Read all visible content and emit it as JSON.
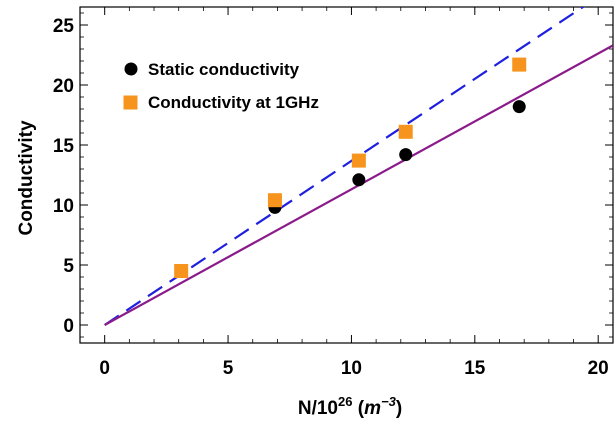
{
  "chart_data": {
    "type": "scatter",
    "xlabel": "N/10",
    "xlabel_exponent": "26",
    "xlabel_unit_open": " (",
    "xlabel_unit_base": "m",
    "xlabel_unit_exponent": "−3",
    "xlabel_unit_close": ")",
    "ylabel": "Conductivity",
    "xlim": [
      -1.0,
      20.6
    ],
    "ylim": [
      -1.5,
      26.5
    ],
    "xticks": [
      "0",
      "5",
      "10",
      "15",
      "20"
    ],
    "yticks": [
      "0",
      "5",
      "10",
      "15",
      "20",
      "25"
    ],
    "grid": false,
    "legend_position": "top-left",
    "series": [
      {
        "name": "Static conductivity",
        "kind": "points",
        "marker": "circle",
        "color": "#000000",
        "x": [
          6.9,
          10.3,
          12.2,
          16.8
        ],
        "y": [
          9.8,
          12.1,
          14.2,
          18.2
        ]
      },
      {
        "name": "Conductivity at 1GHz",
        "kind": "points",
        "marker": "square",
        "color": "#f7941d",
        "x": [
          3.1,
          6.9,
          10.3,
          12.2,
          16.8
        ],
        "y": [
          4.5,
          10.4,
          13.7,
          16.1,
          21.7
        ]
      },
      {
        "kind": "line",
        "style": "dashed",
        "color": "#1f1fe0",
        "x": [
          0,
          19.6
        ],
        "y": [
          0,
          26.8
        ]
      },
      {
        "kind": "line",
        "style": "solid",
        "color": "#8b1a8b",
        "x": [
          0,
          20.6
        ],
        "y": [
          0,
          23.3
        ]
      }
    ]
  }
}
